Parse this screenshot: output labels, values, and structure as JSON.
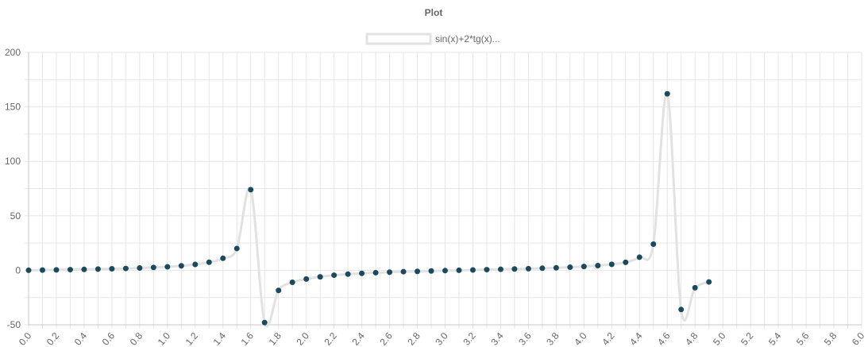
{
  "chart_data": {
    "type": "line",
    "title": "Plot",
    "xlabel": "",
    "ylabel": "",
    "xlim": [
      0,
      6
    ],
    "ylim": [
      -50,
      200
    ],
    "x_ticks": [
      "0.0",
      "0.2",
      "0.4",
      "0.6",
      "0.8",
      "1.0",
      "1.2",
      "1.4",
      "1.6",
      "1.8",
      "2.0",
      "2.2",
      "2.4",
      "2.6",
      "2.8",
      "3.0",
      "3.2",
      "3.4",
      "3.6",
      "3.8",
      "4.0",
      "4.2",
      "4.4",
      "4.6",
      "4.8",
      "5.0",
      "5.2",
      "5.4",
      "5.6",
      "5.8",
      "6.0"
    ],
    "y_ticks": [
      "-50",
      "0",
      "50",
      "100",
      "150",
      "200"
    ],
    "grid": true,
    "legend_position": "top",
    "colors": {
      "line": "#e2e2e2",
      "point": "#1b4a5e",
      "grid": "#e6e6e6",
      "axis": "#c8c8c8",
      "text": "#666666"
    },
    "series": [
      {
        "name": "sin(x)+2*tg(x)...",
        "x": [
          0.0,
          0.1,
          0.2,
          0.3,
          0.4,
          0.5,
          0.6,
          0.7,
          0.8,
          0.9,
          1.0,
          1.1,
          1.2,
          1.3,
          1.4,
          1.5,
          1.6,
          1.7,
          1.8,
          1.9,
          2.0,
          2.1,
          2.2,
          2.3,
          2.4,
          2.5,
          2.6,
          2.7,
          2.8,
          2.9,
          3.0,
          3.1,
          3.2,
          3.3,
          3.4,
          3.5,
          3.6,
          3.7,
          3.8,
          3.9,
          4.0,
          4.1,
          4.2,
          4.3,
          4.4,
          4.5,
          4.6,
          4.7,
          4.8,
          4.9
        ],
        "y": [
          0,
          0.2,
          0.4,
          0.6,
          0.8,
          1.1,
          1.4,
          1.7,
          2.1,
          2.6,
          3.2,
          4.1,
          5.4,
          7.4,
          11,
          20,
          74,
          -48,
          -18.5,
          -11,
          -8,
          -6,
          -4.5,
          -3.5,
          -2.8,
          -2.2,
          -1.7,
          -1.3,
          -1,
          -0.6,
          -0.3,
          0,
          0.3,
          0.6,
          0.9,
          1.2,
          1.5,
          1.9,
          2.3,
          2.8,
          3.5,
          4.3,
          5.5,
          7.3,
          12,
          24,
          162,
          -36,
          -16,
          -10.7
        ]
      }
    ]
  }
}
